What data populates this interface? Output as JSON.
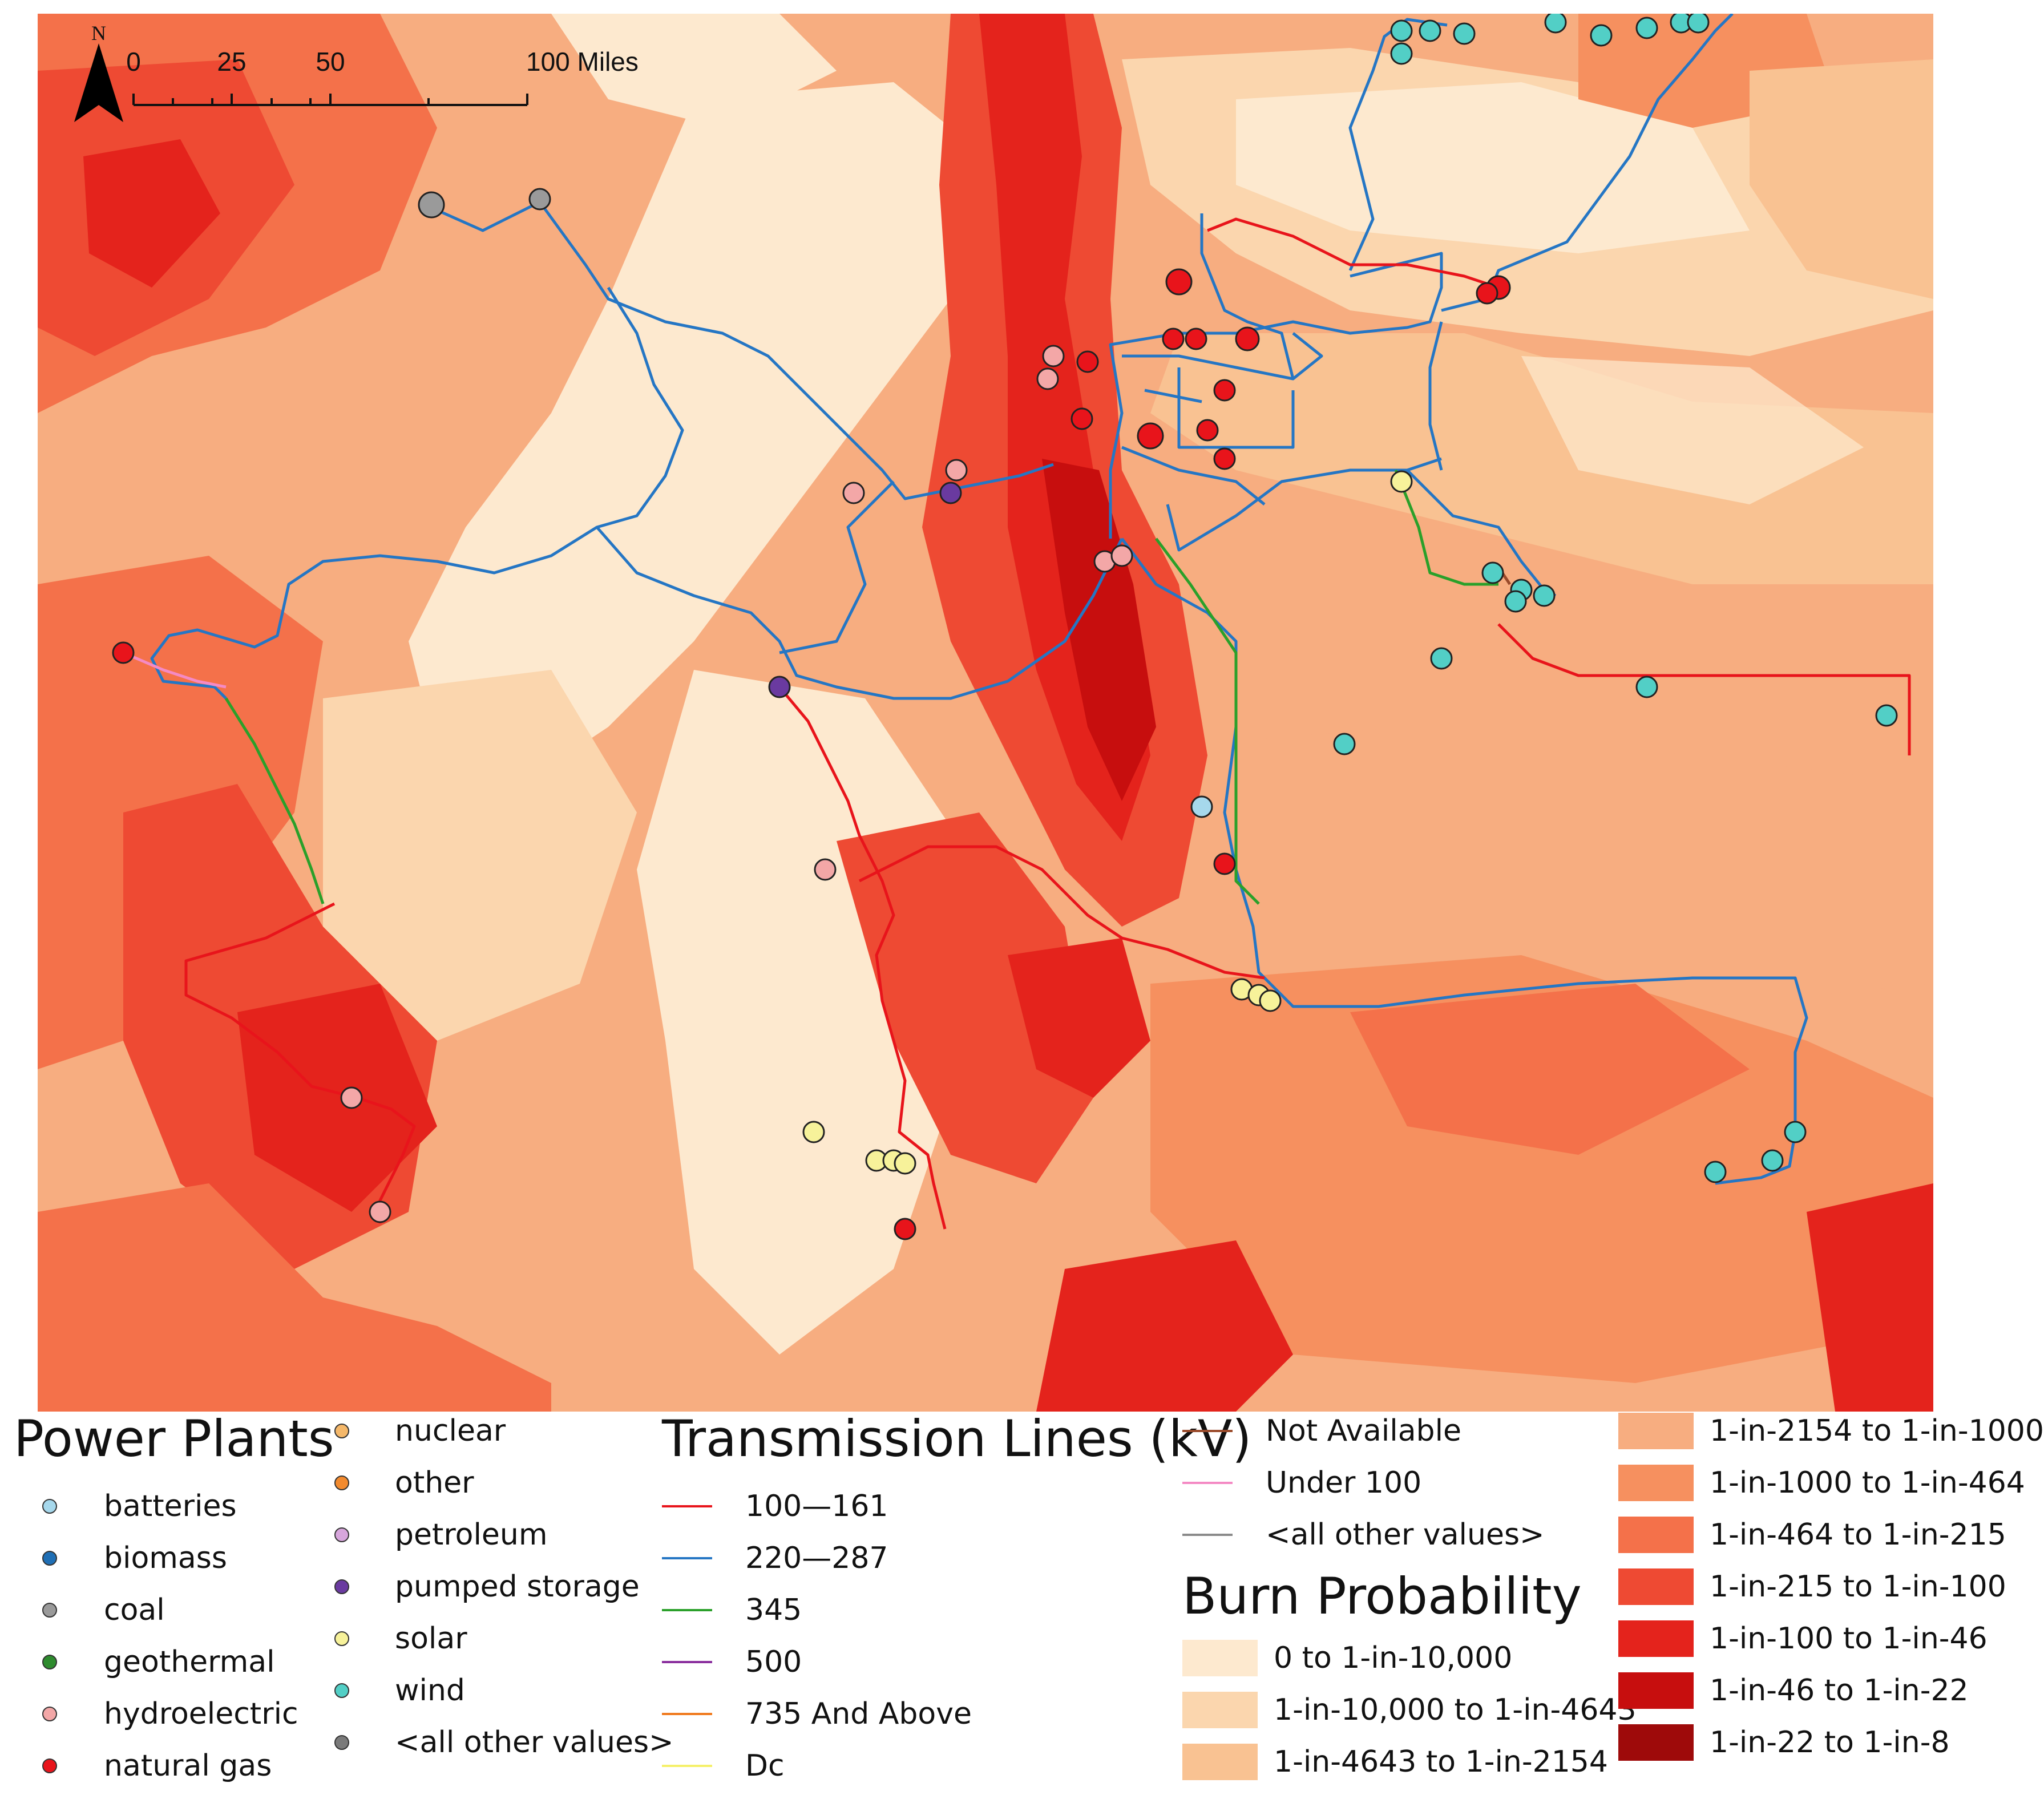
{
  "north_arrow": {
    "label": "N"
  },
  "scale_bar": {
    "ticks": [
      "0",
      "25",
      "50",
      "100 Miles"
    ]
  },
  "power_plants": {
    "title": "Power Plants",
    "items": [
      {
        "label": "batteries",
        "color": "#a6d8ec"
      },
      {
        "label": "biomass",
        "color": "#1f6fb5"
      },
      {
        "label": "coal",
        "color": "#9a9a9a"
      },
      {
        "label": "geothermal",
        "color": "#2e8b2e"
      },
      {
        "label": "hydroelectric",
        "color": "#f3a7a7"
      },
      {
        "label": "natural gas",
        "color": "#e8141b"
      },
      {
        "label": "nuclear",
        "color": "#f5b86a"
      },
      {
        "label": "other",
        "color": "#f28a2e"
      },
      {
        "label": "petroleum",
        "color": "#d7a6dc"
      },
      {
        "label": "pumped storage",
        "color": "#6a3aa0"
      },
      {
        "label": "solar",
        "color": "#f7f29a"
      },
      {
        "label": "wind",
        "color": "#52cfc6"
      },
      {
        "label": "<all other values>",
        "color": "#7a7a7a"
      }
    ]
  },
  "transmission_lines": {
    "title": "Transmission Lines (kV)",
    "items": [
      {
        "label": "100—161",
        "color": "#e8141b"
      },
      {
        "label": "220—287",
        "color": "#2576c4"
      },
      {
        "label": "345",
        "color": "#2aa02a"
      },
      {
        "label": "500",
        "color": "#8a2f9e"
      },
      {
        "label": "735 And Above",
        "color": "#f07a1e"
      },
      {
        "label": "Dc",
        "color": "#f5f06a"
      },
      {
        "label": "Not Available",
        "color": "#9a4a2a"
      },
      {
        "label": "Under 100",
        "color": "#f48ac4"
      },
      {
        "label": "<all other values>",
        "color": "#8a8a8a"
      }
    ]
  },
  "burn_probability": {
    "title": "Burn Probability",
    "items": [
      {
        "label": "0 to 1-in-10,000",
        "color": "#fde9cf"
      },
      {
        "label": "1-in-10,000 to 1-in-4643",
        "color": "#fbd6ae"
      },
      {
        "label": "1-in-4643 to 1-in-2154",
        "color": "#f9c292"
      },
      {
        "label": "1-in-2154 to 1-in-1000",
        "color": "#f7ad80"
      },
      {
        "label": "1-in-1000 to 1-in-464",
        "color": "#f6905f"
      },
      {
        "label": "1-in-464 to 1-in-215",
        "color": "#f4714a"
      },
      {
        "label": "1-in-215 to 1-in-100",
        "color": "#ee4a33"
      },
      {
        "label": "1-in-100 to 1-in-46",
        "color": "#e4231c"
      },
      {
        "label": "1-in-46 to 1-in-22",
        "color": "#c70e0e"
      },
      {
        "label": "1-in-22 to 1-in-8",
        "color": "#9e0a0a"
      }
    ]
  }
}
